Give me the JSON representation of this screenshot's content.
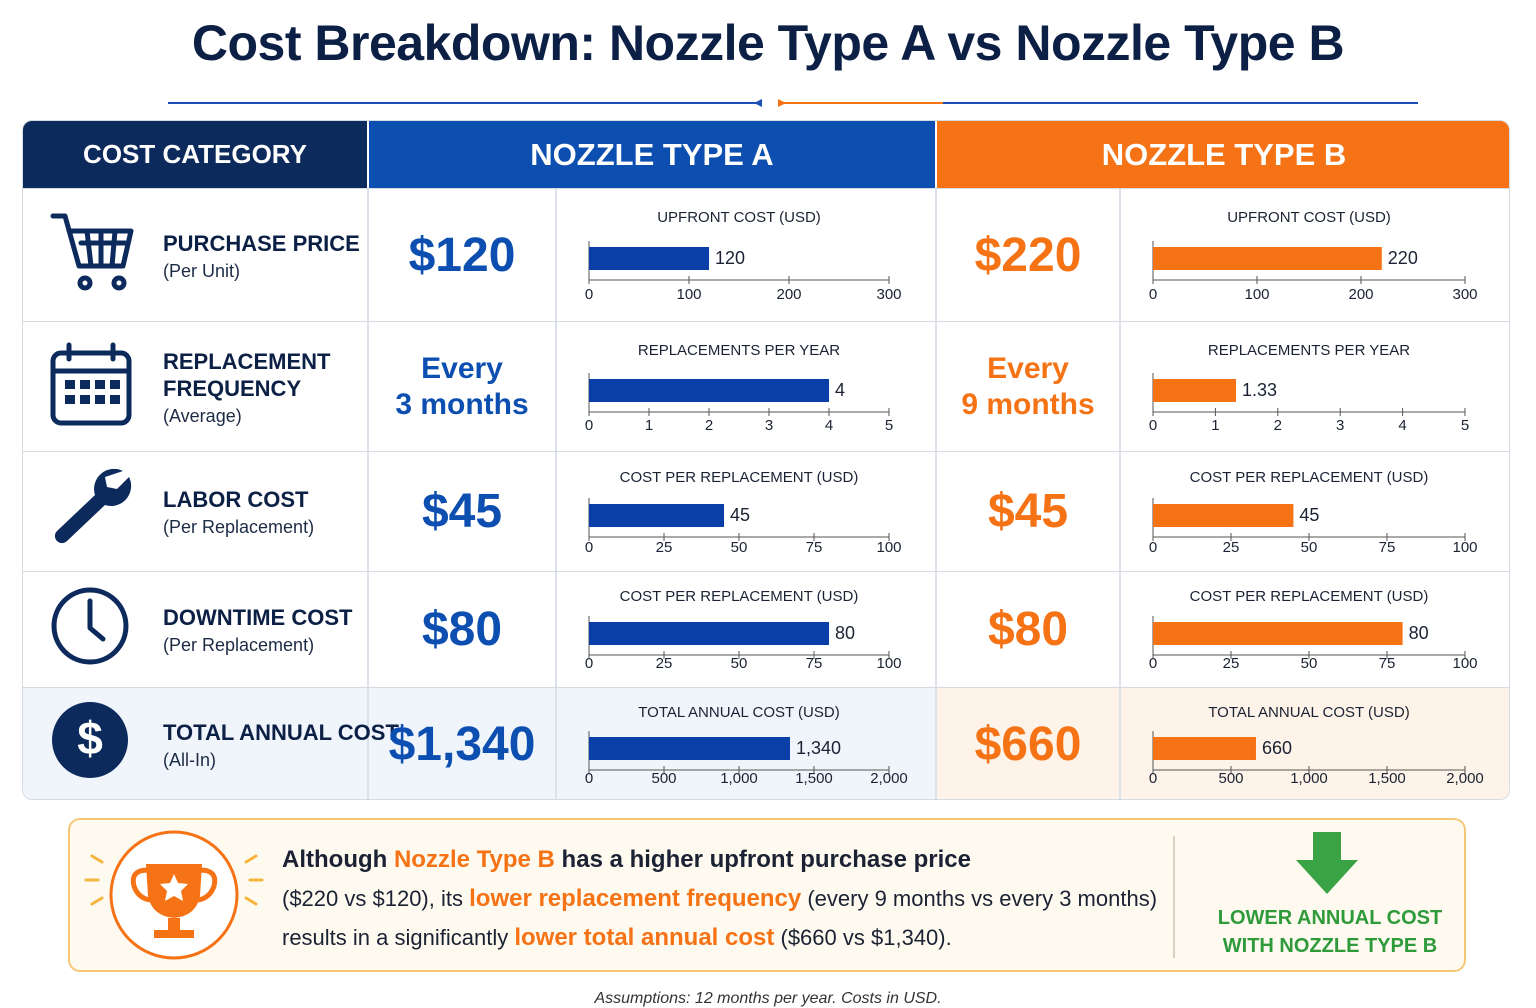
{
  "title": "Cost Breakdown: Nozzle Type A vs Nozzle Type B",
  "header": [
    "COST CATEGORY",
    "NOZZLE TYPE A",
    "NOZZLE TYPE B"
  ],
  "rows": [
    {
      "label": [
        "PURCHASE PRICE"
      ],
      "note": "(Per Unit)",
      "a": [
        "$120"
      ],
      "b": [
        "$220"
      ]
    },
    {
      "label": [
        "REPLACEMENT",
        "FREQUENCY"
      ],
      "note": "(Average)",
      "a": [
        "Every",
        "3 months"
      ],
      "b": [
        "Every",
        "9 months"
      ]
    },
    {
      "label": [
        "LABOR COST"
      ],
      "note": "(Per Replacement)",
      "a": [
        "$45"
      ],
      "b": [
        "$45"
      ]
    },
    {
      "label": [
        "DOWNTIME COST"
      ],
      "note": "(Per Replacement)",
      "a": [
        "$80"
      ],
      "b": [
        "$80"
      ]
    },
    {
      "label": [
        "TOTAL ANNUAL COST"
      ],
      "note": "(All-In)",
      "a": [
        "$1,340"
      ],
      "b": [
        "$660"
      ]
    }
  ],
  "chart_data": [
    {
      "type": "bar",
      "title": "UPFRONT COST (USD)",
      "values": [
        120
      ],
      "color": "#0b3fa8",
      "xlim": [
        0,
        300
      ],
      "xticks": [
        0,
        100,
        200,
        300
      ]
    },
    {
      "type": "bar",
      "title": "UPFRONT COST (USD)",
      "values": [
        220
      ],
      "color": "#f57215",
      "xlim": [
        0,
        300
      ],
      "xticks": [
        0,
        100,
        200,
        300
      ]
    },
    {
      "type": "bar",
      "title": "REPLACEMENTS PER YEAR",
      "values": [
        4
      ],
      "color": "#0b3fa8",
      "xlim": [
        0,
        5
      ],
      "xticks": [
        0,
        1,
        2,
        3,
        4,
        5
      ]
    },
    {
      "type": "bar",
      "title": "REPLACEMENTS PER YEAR",
      "values": [
        1.33
      ],
      "color": "#f57215",
      "xlim": [
        0,
        5
      ],
      "xticks": [
        0,
        1,
        2,
        3,
        4,
        5
      ]
    },
    {
      "type": "bar",
      "title": "COST PER REPLACEMENT (USD)",
      "values": [
        45
      ],
      "color": "#0b3fa8",
      "xlim": [
        0,
        100
      ],
      "xticks": [
        0,
        25,
        50,
        75,
        100
      ]
    },
    {
      "type": "bar",
      "title": "COST PER REPLACEMENT (USD)",
      "values": [
        45
      ],
      "color": "#f57215",
      "xlim": [
        0,
        100
      ],
      "xticks": [
        0,
        25,
        50,
        75,
        100
      ]
    },
    {
      "type": "bar",
      "title": "COST PER REPLACEMENT (USD)",
      "values": [
        80
      ],
      "color": "#0b3fa8",
      "xlim": [
        0,
        100
      ],
      "xticks": [
        0,
        25,
        50,
        75,
        100
      ]
    },
    {
      "type": "bar",
      "title": "COST PER REPLACEMENT (USD)",
      "values": [
        80
      ],
      "color": "#f57215",
      "xlim": [
        0,
        100
      ],
      "xticks": [
        0,
        25,
        50,
        75,
        100
      ]
    },
    {
      "type": "bar",
      "title": "TOTAL ANNUAL COST (USD)",
      "values": [
        1340
      ],
      "value_labels": [
        "1,340"
      ],
      "color": "#0b3fa8",
      "xlim": [
        0,
        2000
      ],
      "xticks": [
        0,
        500,
        {
          "value": 1000,
          "label": "1,000"
        },
        {
          "value": 1500,
          "label": "1,500"
        },
        {
          "value": 2000,
          "label": "2,000"
        }
      ]
    },
    {
      "type": "bar",
      "title": "TOTAL ANNUAL COST (USD)",
      "values": [
        660
      ],
      "color": "#f57215",
      "xlim": [
        0,
        2000
      ],
      "xticks": [
        0,
        500,
        {
          "value": 1000,
          "label": "1,000"
        },
        {
          "value": 1500,
          "label": "1,500"
        },
        {
          "value": 2000,
          "label": "2,000"
        }
      ]
    }
  ],
  "summary": {
    "lines": [
      [
        {
          "text": "Although "
        },
        {
          "text": "Nozzle Type B",
          "color": "#f57215"
        },
        {
          "text": " has a higher upfront purchase price"
        }
      ],
      [
        {
          "text": "($220 vs $120), its "
        },
        {
          "text": "lower replacement frequency",
          "color": "#f57215"
        },
        {
          "text": " (every 9 months vs every 3 months)"
        }
      ],
      [
        {
          "text": "results in a significantly "
        },
        {
          "text": "lower total annual cost",
          "color": "#f57215"
        },
        {
          "text": " ($660 vs $1,340)."
        }
      ]
    ],
    "callout": [
      "LOWER ANNUAL COST",
      "WITH NOZZLE TYPE B"
    ]
  },
  "footnote": "Assumptions: 12 months per year. Costs in USD."
}
